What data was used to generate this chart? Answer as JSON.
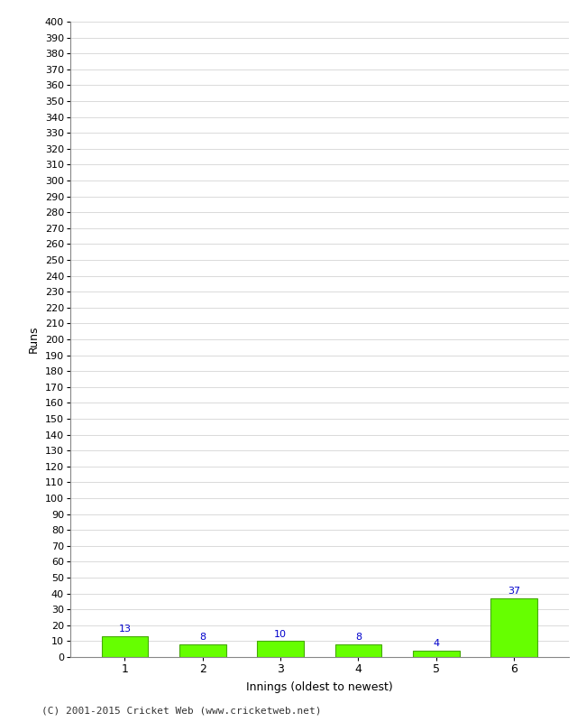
{
  "categories": [
    "1",
    "2",
    "3",
    "4",
    "5",
    "6"
  ],
  "values": [
    13,
    8,
    10,
    8,
    4,
    37
  ],
  "bar_color": "#66ff00",
  "bar_edge_color": "#44aa00",
  "xlabel": "Innings (oldest to newest)",
  "ylabel": "Runs",
  "ylim": [
    0,
    400
  ],
  "ytick_step": 10,
  "label_color": "#0000cc",
  "background_color": "#ffffff",
  "grid_color": "#cccccc",
  "footer": "(C) 2001-2015 Cricket Web (www.cricketweb.net)"
}
